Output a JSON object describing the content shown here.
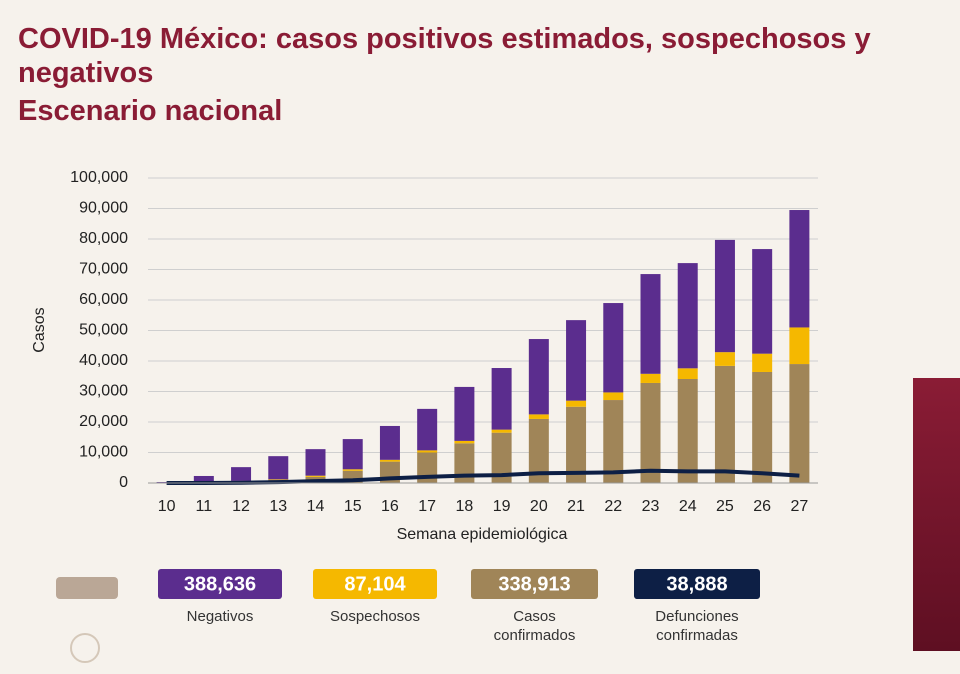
{
  "chart_data": {
    "type": "bar",
    "stacked": true,
    "title": "COVID-19 México: casos positivos estimados, sospechosos y negativos",
    "subtitle": "Escenario nacional",
    "x_label": "Semana epidemiológica",
    "y_label": "Casos",
    "categories": [
      "10",
      "11",
      "12",
      "13",
      "14",
      "15",
      "16",
      "17",
      "18",
      "19",
      "20",
      "21",
      "22",
      "23",
      "24",
      "25",
      "26",
      "27"
    ],
    "series": [
      {
        "name": "Casos confirmados",
        "type": "bar",
        "color": "#a08558",
        "values": [
          100,
          300,
          600,
          1000,
          2000,
          4000,
          7000,
          10000,
          13000,
          16500,
          21000,
          25000,
          27200,
          32800,
          34100,
          38400,
          36400,
          39000
        ]
      },
      {
        "name": "Sospechosos",
        "type": "bar",
        "color": "#f5b800",
        "values": [
          0,
          50,
          100,
          200,
          400,
          500,
          600,
          700,
          800,
          1000,
          1500,
          2000,
          2500,
          3000,
          3500,
          4500,
          6000,
          12000
        ]
      },
      {
        "name": "Negativos",
        "type": "bar",
        "color": "#5b2d8e",
        "values": [
          200,
          1950,
          4500,
          7600,
          8700,
          9900,
          11100,
          13600,
          17700,
          20200,
          24700,
          26400,
          29300,
          32700,
          34500,
          36800,
          34300,
          38500
        ]
      },
      {
        "name": "Defunciones confirmadas",
        "type": "line",
        "color": "#0d1f45",
        "values": [
          0,
          10,
          100,
          300,
          600,
          900,
          1500,
          2000,
          2400,
          2600,
          3200,
          3300,
          3500,
          4000,
          3800,
          3800,
          3200,
          2400
        ]
      }
    ],
    "ylim": [
      0,
      100000
    ],
    "yticks": [
      0,
      {
        "value": 10000,
        "label": "10,000"
      },
      {
        "value": 20000,
        "label": "20,000"
      },
      {
        "value": 30000,
        "label": "30,000"
      },
      {
        "value": 40000,
        "label": "40,000"
      },
      {
        "value": 50000,
        "label": "50,000"
      },
      {
        "value": 60000,
        "label": "60,000"
      },
      {
        "value": 70000,
        "label": "70,000"
      },
      {
        "value": 80000,
        "label": "80,000"
      },
      {
        "value": 90000,
        "label": "90,000"
      },
      {
        "value": 100000,
        "label": "100,000"
      }
    ],
    "grid": true
  },
  "summary": [
    {
      "value": "388,636",
      "label": "Negativos",
      "color": "#5b2d8e"
    },
    {
      "value": "87,104",
      "label": "Sospechosos",
      "color": "#f5b800"
    },
    {
      "value": "338,913",
      "label": "Casos confirmados",
      "color": "#a08558"
    },
    {
      "value": "38,888",
      "label": "Defunciones confirmadas",
      "color": "#0d1f45"
    }
  ]
}
